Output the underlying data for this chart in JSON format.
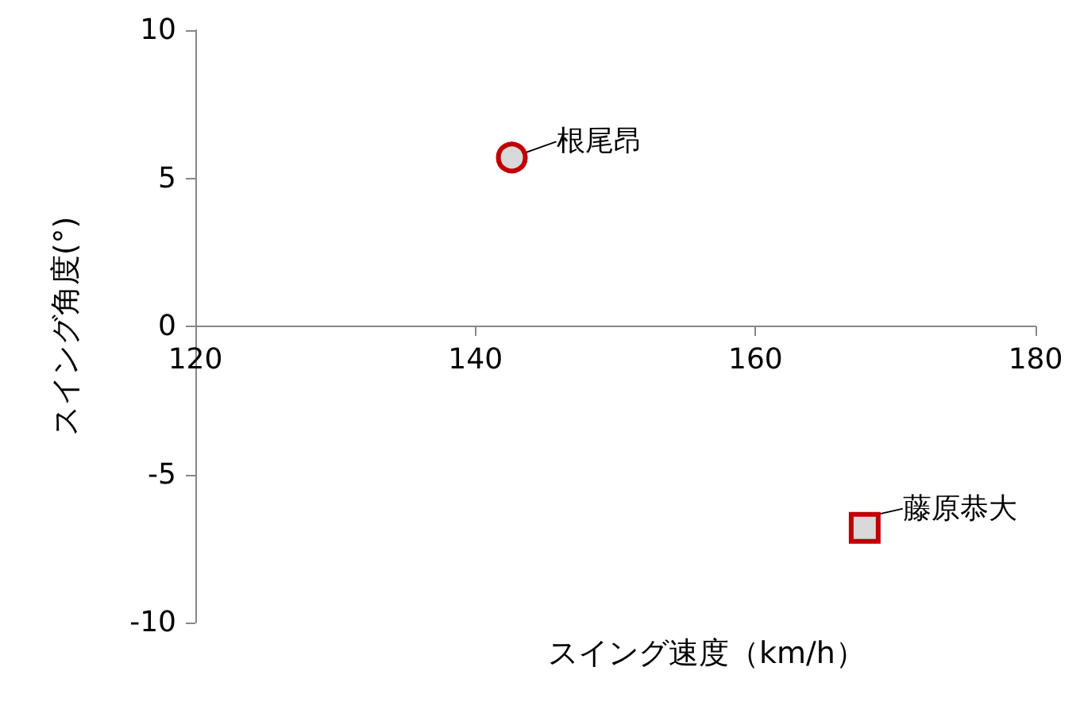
{
  "chart_data": {
    "type": "scatter",
    "xlabel": "スイング速度（km/h）",
    "ylabel": "スイング角度(°)",
    "xlim": [
      120,
      180
    ],
    "xticks": [
      120,
      140,
      160,
      180
    ],
    "ylim": [
      -10,
      10
    ],
    "yticks": [
      -10,
      -5,
      0,
      5,
      10
    ],
    "grid": false,
    "legend": false,
    "series": [
      {
        "name": "根尾昂",
        "color": "#c00000",
        "marker": "circle",
        "x": [
          142.6
        ],
        "values": [
          5.7
        ]
      },
      {
        "name": "藤原恭大",
        "color": "#c00000",
        "marker": "square",
        "x": [
          167.8
        ],
        "values": [
          -6.8
        ]
      }
    ]
  }
}
